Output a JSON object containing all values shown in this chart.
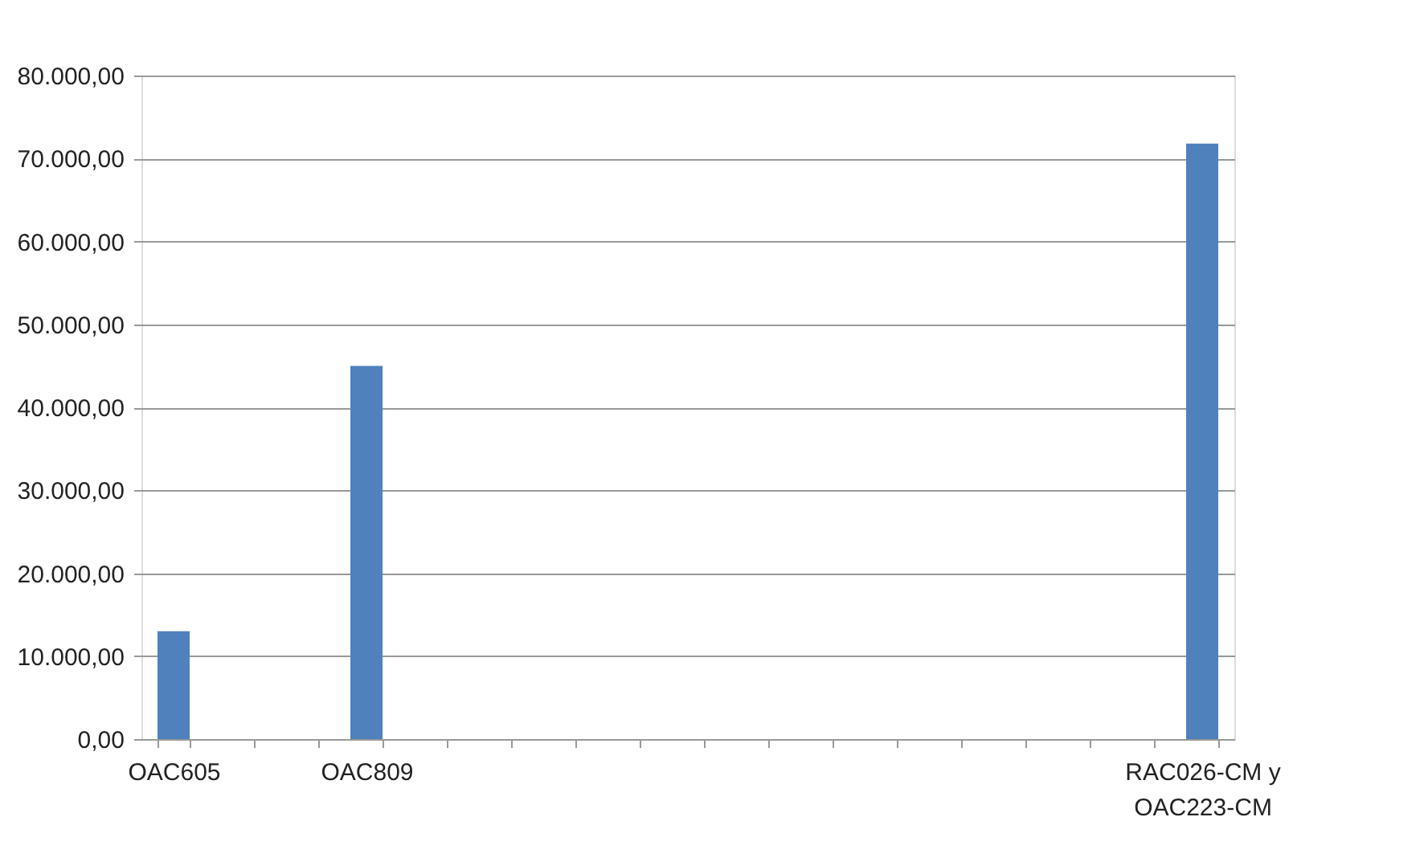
{
  "chart_data": {
    "type": "bar",
    "categories": [
      "OAC605",
      null,
      null,
      "OAC809",
      null,
      null,
      null,
      null,
      null,
      null,
      null,
      null,
      null,
      null,
      null,
      null,
      "RAC026-CM y\nOAC223-CM"
    ],
    "values": [
      13000,
      null,
      null,
      45000,
      null,
      null,
      null,
      null,
      null,
      null,
      null,
      null,
      null,
      null,
      null,
      null,
      71800
    ],
    "color": "#4f81bd",
    "ylim": [
      0,
      80000
    ],
    "yticks": [
      {
        "value": 0,
        "label": "0,00"
      },
      {
        "value": 10000,
        "label": "10.000,00"
      },
      {
        "value": 20000,
        "label": "20.000,00"
      },
      {
        "value": 30000,
        "label": "30.000,00"
      },
      {
        "value": 40000,
        "label": "40.000,00"
      },
      {
        "value": 50000,
        "label": "50.000,00"
      },
      {
        "value": 60000,
        "label": "60.000,00"
      },
      {
        "value": 70000,
        "label": "70.000,00"
      },
      {
        "value": 80000,
        "label": "80.000,00"
      }
    ],
    "grid": "y"
  }
}
